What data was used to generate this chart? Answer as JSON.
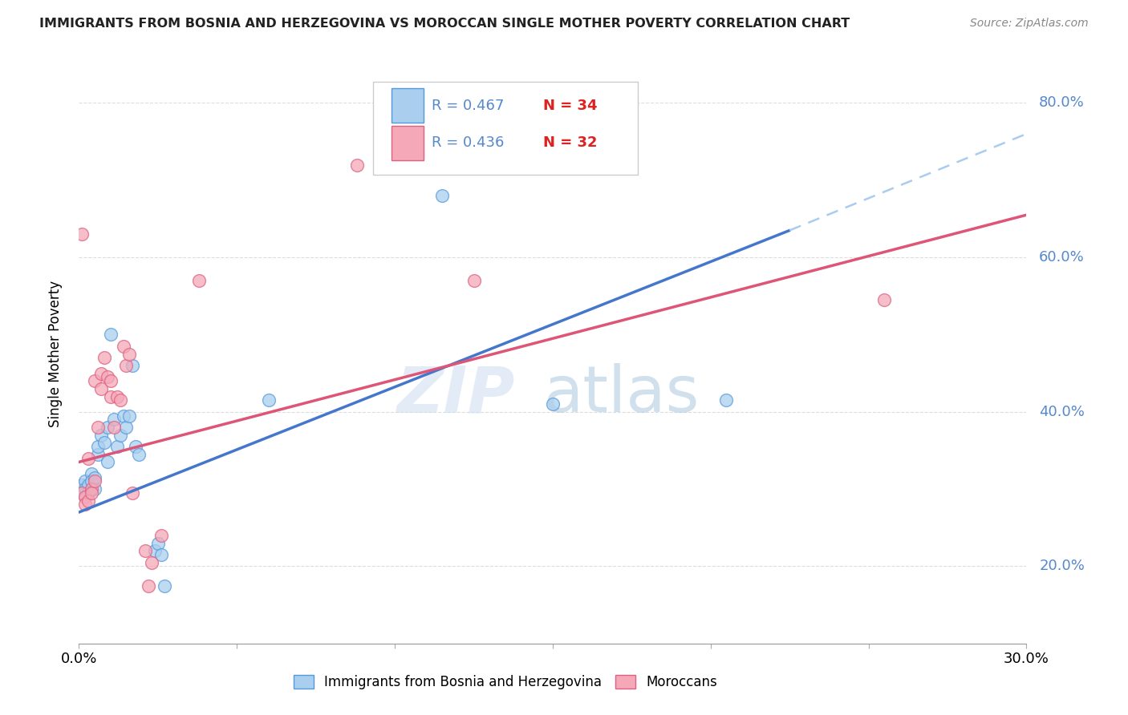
{
  "title": "IMMIGRANTS FROM BOSNIA AND HERZEGOVINA VS MOROCCAN SINGLE MOTHER POVERTY CORRELATION CHART",
  "source": "Source: ZipAtlas.com",
  "ylabel": "Single Mother Poverty",
  "legend_label1": "Immigrants from Bosnia and Herzegovina",
  "legend_label2": "Moroccans",
  "legend_R1": "R = 0.467",
  "legend_N1": "N = 34",
  "legend_R2": "R = 0.436",
  "legend_N2": "N = 32",
  "xlim": [
    0.0,
    0.3
  ],
  "ylim": [
    0.1,
    0.85
  ],
  "xtick_positions": [
    0.0,
    0.05,
    0.1,
    0.15,
    0.2,
    0.25,
    0.3
  ],
  "xtick_labels_show": [
    "0.0%",
    "",
    "",
    "",
    "",
    "",
    "30.0%"
  ],
  "yticks": [
    0.2,
    0.4,
    0.6,
    0.8
  ],
  "color_blue_fill": "#aacfee",
  "color_pink_fill": "#f4a8b8",
  "color_blue_edge": "#5599dd",
  "color_pink_edge": "#e06080",
  "color_blue_line": "#4477cc",
  "color_pink_line": "#dd5577",
  "color_dashed": "#aaccee",
  "color_right_labels": "#5588cc",
  "color_title": "#222222",
  "color_source": "#888888",
  "watermark_zip": "ZIP",
  "watermark_atlas": "atlas",
  "blue_scatter": [
    [
      0.001,
      0.305
    ],
    [
      0.001,
      0.295
    ],
    [
      0.002,
      0.31
    ],
    [
      0.002,
      0.3
    ],
    [
      0.003,
      0.305
    ],
    [
      0.003,
      0.295
    ],
    [
      0.004,
      0.32
    ],
    [
      0.004,
      0.31
    ],
    [
      0.005,
      0.3
    ],
    [
      0.005,
      0.315
    ],
    [
      0.006,
      0.345
    ],
    [
      0.006,
      0.355
    ],
    [
      0.007,
      0.37
    ],
    [
      0.008,
      0.36
    ],
    [
      0.009,
      0.38
    ],
    [
      0.009,
      0.335
    ],
    [
      0.01,
      0.5
    ],
    [
      0.011,
      0.39
    ],
    [
      0.012,
      0.355
    ],
    [
      0.013,
      0.37
    ],
    [
      0.014,
      0.395
    ],
    [
      0.015,
      0.38
    ],
    [
      0.016,
      0.395
    ],
    [
      0.017,
      0.46
    ],
    [
      0.018,
      0.355
    ],
    [
      0.019,
      0.345
    ],
    [
      0.024,
      0.22
    ],
    [
      0.025,
      0.23
    ],
    [
      0.026,
      0.215
    ],
    [
      0.027,
      0.175
    ],
    [
      0.06,
      0.415
    ],
    [
      0.115,
      0.68
    ],
    [
      0.15,
      0.41
    ],
    [
      0.205,
      0.415
    ]
  ],
  "pink_scatter": [
    [
      0.001,
      0.295
    ],
    [
      0.001,
      0.63
    ],
    [
      0.002,
      0.29
    ],
    [
      0.002,
      0.28
    ],
    [
      0.003,
      0.285
    ],
    [
      0.003,
      0.34
    ],
    [
      0.004,
      0.3
    ],
    [
      0.004,
      0.295
    ],
    [
      0.005,
      0.31
    ],
    [
      0.005,
      0.44
    ],
    [
      0.006,
      0.38
    ],
    [
      0.007,
      0.43
    ],
    [
      0.007,
      0.45
    ],
    [
      0.008,
      0.47
    ],
    [
      0.009,
      0.445
    ],
    [
      0.01,
      0.44
    ],
    [
      0.01,
      0.42
    ],
    [
      0.011,
      0.38
    ],
    [
      0.012,
      0.42
    ],
    [
      0.013,
      0.415
    ],
    [
      0.014,
      0.485
    ],
    [
      0.015,
      0.46
    ],
    [
      0.016,
      0.475
    ],
    [
      0.017,
      0.295
    ],
    [
      0.021,
      0.22
    ],
    [
      0.022,
      0.175
    ],
    [
      0.023,
      0.205
    ],
    [
      0.026,
      0.24
    ],
    [
      0.038,
      0.57
    ],
    [
      0.088,
      0.72
    ],
    [
      0.125,
      0.57
    ],
    [
      0.255,
      0.545
    ]
  ],
  "blue_line": [
    [
      0.0,
      0.27
    ],
    [
      0.225,
      0.635
    ]
  ],
  "pink_line": [
    [
      0.0,
      0.335
    ],
    [
      0.3,
      0.655
    ]
  ],
  "dashed_line": [
    [
      0.225,
      0.635
    ],
    [
      0.3,
      0.76
    ]
  ]
}
